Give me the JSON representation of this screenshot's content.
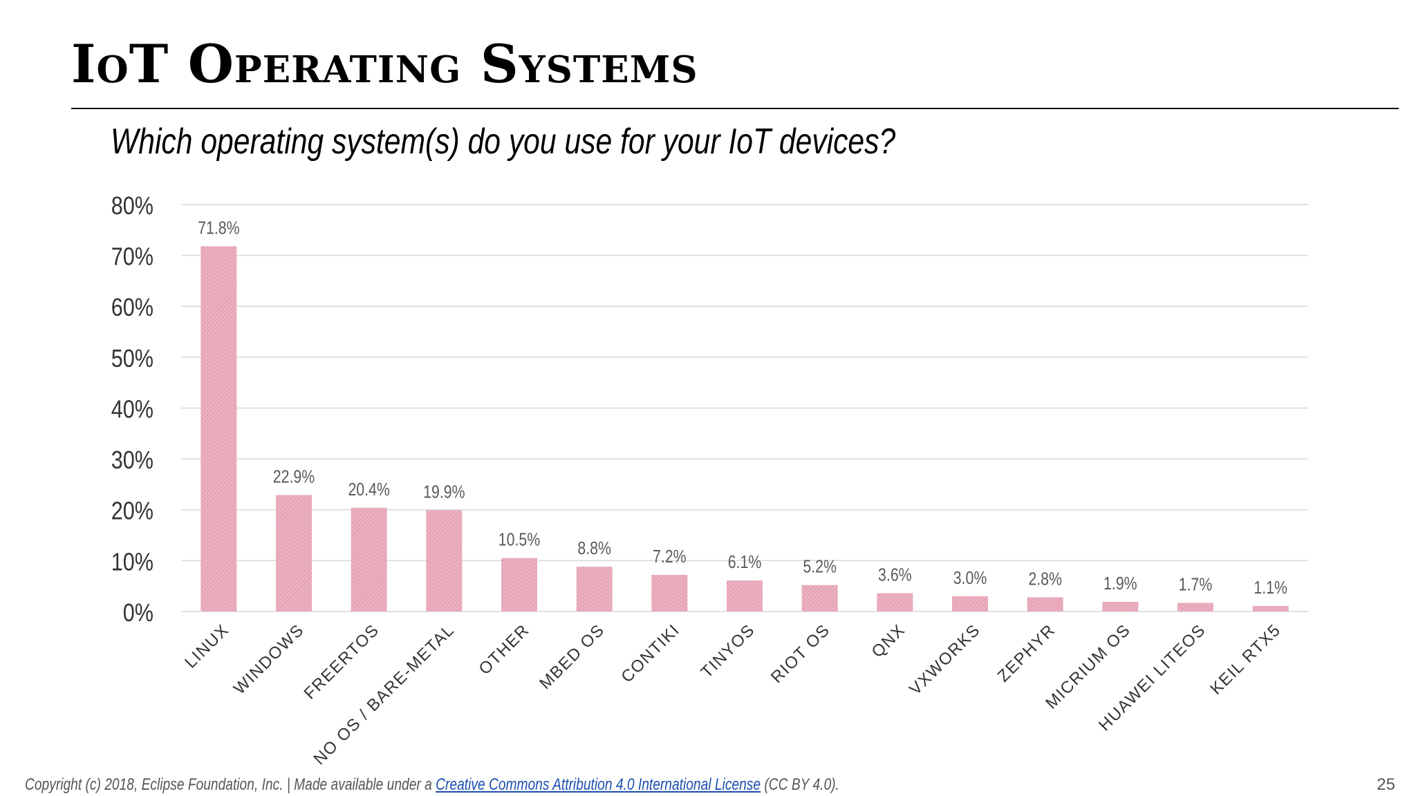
{
  "slide": {
    "title": "IoT Operating Systems",
    "subtitle": "Which operating system(s) do you use for your IoT devices?",
    "footer_prefix": "Copyright (c) 2018, Eclipse Foundation, Inc. | Made available under a ",
    "footer_link": "Creative Commons Attribution 4.0 International License",
    "footer_suffix": " (CC BY 4.0).",
    "page_number": "25"
  },
  "colors": {
    "bar": "#e8a3b4",
    "bar_stripe": "#d9879c",
    "gridline": "#d9d9d9",
    "tick_text": "#333333",
    "label_text": "#595959"
  },
  "chart_data": {
    "type": "bar",
    "categories": [
      "LINUX",
      "WINDOWS",
      "FREERTOS",
      "NO OS / BARE-METAL",
      "OTHER",
      "MBED OS",
      "CONTIKI",
      "TINYOS",
      "RIOT OS",
      "QNX",
      "VXWORKS",
      "ZEPHYR",
      "MICRIUM OS",
      "HUAWEI LITEOS",
      "KEIL RTX5"
    ],
    "values": [
      71.8,
      22.9,
      20.4,
      19.9,
      10.5,
      8.8,
      7.2,
      6.1,
      5.2,
      3.6,
      3.0,
      2.8,
      1.9,
      1.7,
      1.1
    ],
    "data_labels": [
      "71.8%",
      "22.9%",
      "20.4%",
      "19.9%",
      "10.5%",
      "8.8%",
      "7.2%",
      "6.1%",
      "5.2%",
      "3.6%",
      "3.0%",
      "2.8%",
      "1.9%",
      "1.7%",
      "1.1%"
    ],
    "yticks": [
      "0%",
      "10%",
      "20%",
      "30%",
      "40%",
      "50%",
      "60%",
      "70%",
      "80%"
    ],
    "ylim": [
      0,
      80
    ],
    "grid": true,
    "legend": "none"
  }
}
